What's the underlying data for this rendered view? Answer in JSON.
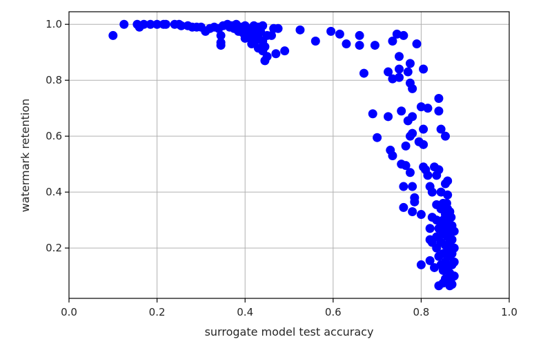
{
  "chart_data": {
    "type": "scatter",
    "xlabel": "surrogate model test accuracy",
    "ylabel": "watermark retention",
    "xlim": [
      0.0,
      1.0
    ],
    "ylim": [
      0.02,
      1.045
    ],
    "xticks": [
      0.0,
      0.2,
      0.4,
      0.6,
      0.8,
      1.0
    ],
    "xtick_labels": [
      "0.0",
      "0.2",
      "0.4",
      "0.6",
      "0.8",
      "1.0"
    ],
    "yticks": [
      0.2,
      0.4,
      0.6,
      0.8,
      1.0
    ],
    "ytick_labels": [
      "0.2",
      "0.4",
      "0.6",
      "0.8",
      "1.0"
    ],
    "grid": true,
    "marker_color": "#0000ff",
    "series": [
      {
        "points": [
          [
            0.1,
            0.96
          ],
          [
            0.125,
            1.0
          ],
          [
            0.155,
            1.0
          ],
          [
            0.16,
            0.99
          ],
          [
            0.17,
            1.0
          ],
          [
            0.185,
            1.0
          ],
          [
            0.2,
            1.0
          ],
          [
            0.215,
            1.0
          ],
          [
            0.22,
            1.0
          ],
          [
            0.24,
            1.0
          ],
          [
            0.25,
            1.0
          ],
          [
            0.255,
            0.995
          ],
          [
            0.27,
            0.995
          ],
          [
            0.28,
            0.99
          ],
          [
            0.29,
            0.99
          ],
          [
            0.3,
            0.99
          ],
          [
            0.31,
            0.975
          ],
          [
            0.32,
            0.985
          ],
          [
            0.33,
            0.99
          ],
          [
            0.34,
            0.985
          ],
          [
            0.345,
            0.96
          ],
          [
            0.35,
            0.995
          ],
          [
            0.345,
            0.935
          ],
          [
            0.345,
            0.925
          ],
          [
            0.36,
            1.0
          ],
          [
            0.365,
            0.99
          ],
          [
            0.37,
            0.995
          ],
          [
            0.375,
            0.985
          ],
          [
            0.38,
            1.0
          ],
          [
            0.385,
            0.975
          ],
          [
            0.39,
            0.99
          ],
          [
            0.395,
            0.97
          ],
          [
            0.4,
            0.995
          ],
          [
            0.4,
            0.95
          ],
          [
            0.405,
            0.975
          ],
          [
            0.41,
            0.985
          ],
          [
            0.41,
            0.955
          ],
          [
            0.415,
            0.93
          ],
          [
            0.42,
            0.995
          ],
          [
            0.42,
            0.965
          ],
          [
            0.425,
            0.945
          ],
          [
            0.43,
            0.99
          ],
          [
            0.43,
            0.96
          ],
          [
            0.435,
            0.975
          ],
          [
            0.44,
            0.995
          ],
          [
            0.44,
            0.94
          ],
          [
            0.445,
            0.92
          ],
          [
            0.45,
            0.96
          ],
          [
            0.43,
            0.915
          ],
          [
            0.44,
            0.905
          ],
          [
            0.445,
            0.87
          ],
          [
            0.45,
            0.885
          ],
          [
            0.46,
            0.96
          ],
          [
            0.465,
            0.985
          ],
          [
            0.475,
            0.985
          ],
          [
            0.47,
            0.895
          ],
          [
            0.49,
            0.905
          ],
          [
            0.525,
            0.98
          ],
          [
            0.56,
            0.94
          ],
          [
            0.595,
            0.975
          ],
          [
            0.615,
            0.965
          ],
          [
            0.63,
            0.93
          ],
          [
            0.66,
            0.96
          ],
          [
            0.66,
            0.925
          ],
          [
            0.67,
            0.825
          ],
          [
            0.69,
            0.68
          ],
          [
            0.695,
            0.925
          ],
          [
            0.7,
            0.595
          ],
          [
            0.725,
            0.83
          ],
          [
            0.725,
            0.67
          ],
          [
            0.73,
            0.55
          ],
          [
            0.735,
            0.94
          ],
          [
            0.735,
            0.805
          ],
          [
            0.735,
            0.53
          ],
          [
            0.745,
            0.965
          ],
          [
            0.75,
            0.885
          ],
          [
            0.75,
            0.84
          ],
          [
            0.75,
            0.81
          ],
          [
            0.755,
            0.69
          ],
          [
            0.755,
            0.5
          ],
          [
            0.76,
            0.96
          ],
          [
            0.76,
            0.42
          ],
          [
            0.76,
            0.345
          ],
          [
            0.765,
            0.565
          ],
          [
            0.765,
            0.495
          ],
          [
            0.77,
            0.83
          ],
          [
            0.77,
            0.655
          ],
          [
            0.775,
            0.86
          ],
          [
            0.775,
            0.79
          ],
          [
            0.775,
            0.6
          ],
          [
            0.775,
            0.47
          ],
          [
            0.78,
            0.77
          ],
          [
            0.78,
            0.67
          ],
          [
            0.78,
            0.61
          ],
          [
            0.78,
            0.42
          ],
          [
            0.78,
            0.33
          ],
          [
            0.785,
            0.365
          ],
          [
            0.785,
            0.38
          ],
          [
            0.79,
            0.93
          ],
          [
            0.795,
            0.58
          ],
          [
            0.8,
            0.705
          ],
          [
            0.8,
            0.32
          ],
          [
            0.8,
            0.14
          ],
          [
            0.805,
            0.84
          ],
          [
            0.805,
            0.625
          ],
          [
            0.805,
            0.57
          ],
          [
            0.805,
            0.49
          ],
          [
            0.81,
            0.48
          ],
          [
            0.815,
            0.7
          ],
          [
            0.815,
            0.46
          ],
          [
            0.82,
            0.42
          ],
          [
            0.82,
            0.27
          ],
          [
            0.82,
            0.23
          ],
          [
            0.82,
            0.155
          ],
          [
            0.825,
            0.4
          ],
          [
            0.825,
            0.31
          ],
          [
            0.825,
            0.22
          ],
          [
            0.83,
            0.49
          ],
          [
            0.83,
            0.13
          ],
          [
            0.835,
            0.46
          ],
          [
            0.835,
            0.355
          ],
          [
            0.835,
            0.3
          ],
          [
            0.835,
            0.24
          ],
          [
            0.835,
            0.2
          ],
          [
            0.84,
            0.735
          ],
          [
            0.84,
            0.69
          ],
          [
            0.84,
            0.48
          ],
          [
            0.84,
            0.27
          ],
          [
            0.84,
            0.17
          ],
          [
            0.84,
            0.065
          ],
          [
            0.845,
            0.625
          ],
          [
            0.845,
            0.4
          ],
          [
            0.845,
            0.34
          ],
          [
            0.845,
            0.28
          ],
          [
            0.845,
            0.22
          ],
          [
            0.845,
            0.14
          ],
          [
            0.85,
            0.36
          ],
          [
            0.85,
            0.3
          ],
          [
            0.85,
            0.25
          ],
          [
            0.85,
            0.18
          ],
          [
            0.85,
            0.12
          ],
          [
            0.85,
            0.075
          ],
          [
            0.855,
            0.6
          ],
          [
            0.855,
            0.43
          ],
          [
            0.855,
            0.32
          ],
          [
            0.855,
            0.27
          ],
          [
            0.855,
            0.21
          ],
          [
            0.855,
            0.15
          ],
          [
            0.855,
            0.09
          ],
          [
            0.86,
            0.44
          ],
          [
            0.86,
            0.39
          ],
          [
            0.86,
            0.34
          ],
          [
            0.86,
            0.29
          ],
          [
            0.86,
            0.24
          ],
          [
            0.86,
            0.19
          ],
          [
            0.86,
            0.13
          ],
          [
            0.86,
            0.08
          ],
          [
            0.865,
            0.33
          ],
          [
            0.865,
            0.26
          ],
          [
            0.865,
            0.22
          ],
          [
            0.865,
            0.17
          ],
          [
            0.865,
            0.11
          ],
          [
            0.865,
            0.065
          ],
          [
            0.87,
            0.28
          ],
          [
            0.87,
            0.23
          ],
          [
            0.87,
            0.18
          ],
          [
            0.87,
            0.14
          ],
          [
            0.87,
            0.095
          ],
          [
            0.87,
            0.07
          ],
          [
            0.875,
            0.26
          ],
          [
            0.875,
            0.2
          ],
          [
            0.875,
            0.15
          ],
          [
            0.875,
            0.1
          ],
          [
            0.868,
            0.31
          ],
          [
            0.858,
            0.36
          ]
        ]
      }
    ]
  }
}
